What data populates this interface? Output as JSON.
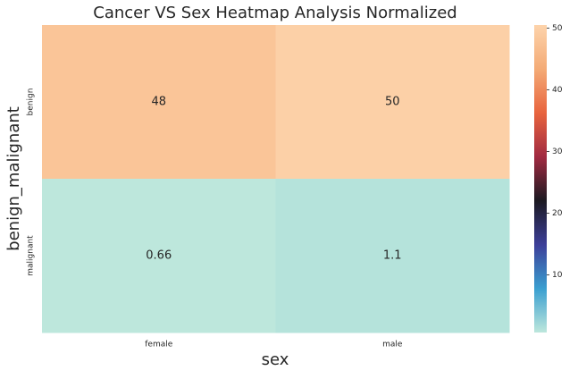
{
  "chart_data": {
    "type": "heatmap",
    "title": "Cancer VS Sex Heatmap Analysis Normalized",
    "x_label": "sex",
    "y_label": "benign_malignant",
    "x_categories": [
      "female",
      "male"
    ],
    "y_categories": [
      "benign",
      "malignant"
    ],
    "values": [
      [
        48,
        50
      ],
      [
        0.66,
        1.1
      ]
    ],
    "colormap": [
      "#bde7dc",
      "#3a9fd0",
      "#3c3f99",
      "#1c1a22",
      "#a12a41",
      "#e8643e",
      "#f4ab76",
      "#fdd3ab"
    ],
    "clim": [
      0.66,
      50.5
    ],
    "cticks": [
      10,
      20,
      30,
      40,
      50
    ]
  }
}
